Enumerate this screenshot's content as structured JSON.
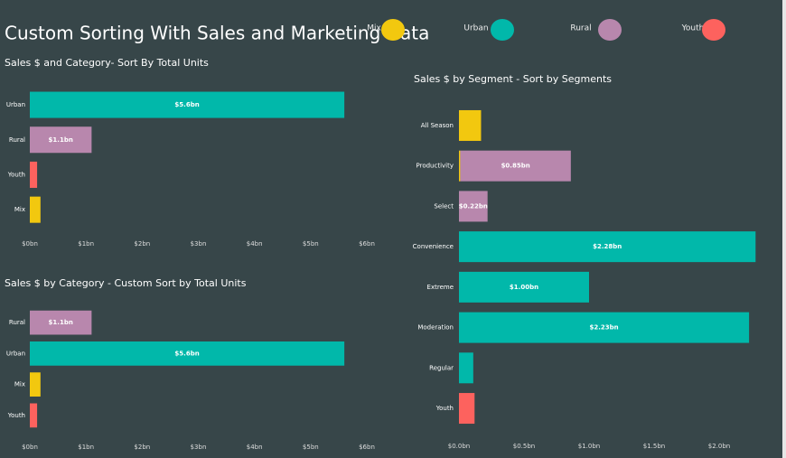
{
  "title": "Custom Sorting With Sales and Marketing Data",
  "legend": [
    {
      "name": "Mix",
      "color": "#F2C80F"
    },
    {
      "name": "Urban",
      "color": "#01B8AA"
    },
    {
      "name": "Rural",
      "color": "#B887AD"
    },
    {
      "name": "Youth",
      "color": "#FD625E"
    }
  ],
  "chart_data": [
    {
      "type": "bar",
      "orientation": "horizontal",
      "title": "Sales $ and Category- Sort By Total Units",
      "categories": [
        "Urban",
        "Rural",
        "Youth",
        "Mix"
      ],
      "values": [
        5.6,
        1.1,
        0.13,
        0.19
      ],
      "value_labels": [
        "$5.6bn",
        "$1.1bn",
        null,
        null
      ],
      "colors": [
        "#01B8AA",
        "#B887AD",
        "#FD625E",
        "#F2C80F"
      ],
      "xlim": [
        0,
        6
      ],
      "xticks": [
        {
          "value": 0,
          "label": "$0bn"
        },
        {
          "value": 1,
          "label": "$1bn"
        },
        {
          "value": 2,
          "label": "$2bn"
        },
        {
          "value": 3,
          "label": "$3bn"
        },
        {
          "value": 4,
          "label": "$4bn"
        },
        {
          "value": 5,
          "label": "$5bn"
        },
        {
          "value": 6,
          "label": "$6bn"
        }
      ]
    },
    {
      "type": "bar",
      "orientation": "horizontal",
      "title": "Sales $ by Category - Custom Sort by Total Units",
      "categories": [
        "Rural",
        "Urban",
        "Mix",
        "Youth"
      ],
      "values": [
        1.1,
        5.6,
        0.19,
        0.13
      ],
      "value_labels": [
        "$1.1bn",
        "$5.6bn",
        null,
        null
      ],
      "colors": [
        "#B887AD",
        "#01B8AA",
        "#F2C80F",
        "#FD625E"
      ],
      "xlim": [
        0,
        6
      ],
      "xticks": [
        {
          "value": 0,
          "label": "$0bn"
        },
        {
          "value": 1,
          "label": "$1bn"
        },
        {
          "value": 2,
          "label": "$2bn"
        },
        {
          "value": 3,
          "label": "$3bn"
        },
        {
          "value": 4,
          "label": "$4bn"
        },
        {
          "value": 5,
          "label": "$5bn"
        },
        {
          "value": 6,
          "label": "$6bn"
        }
      ]
    },
    {
      "type": "stacked-bar",
      "orientation": "horizontal",
      "title": "Sales $ by Segment - Sort by Segments",
      "categories": [
        "All Season",
        "Productivity",
        "Select",
        "Convenience",
        "Extreme",
        "Moderation",
        "Regular",
        "Youth"
      ],
      "series": [
        {
          "name": "Mix",
          "color": "#F2C80F",
          "values": [
            0.17,
            0.01,
            null,
            null,
            null,
            null,
            null,
            null
          ],
          "value_labels": [
            null,
            null,
            null,
            null,
            null,
            null,
            null,
            null
          ]
        },
        {
          "name": "Rural",
          "color": "#B887AD",
          "values": [
            null,
            0.85,
            0.22,
            null,
            null,
            null,
            null,
            null
          ],
          "value_labels": [
            null,
            "$0.85bn",
            "$0.22bn",
            null,
            null,
            null,
            null,
            null
          ]
        },
        {
          "name": "Urban",
          "color": "#01B8AA",
          "values": [
            null,
            null,
            null,
            2.28,
            1.0,
            2.23,
            0.11,
            null
          ],
          "value_labels": [
            null,
            null,
            null,
            "$2.28bn",
            "$1.00bn",
            "$2.23bn",
            null,
            null
          ]
        },
        {
          "name": "Youth",
          "color": "#FD625E",
          "values": [
            null,
            null,
            null,
            null,
            null,
            null,
            null,
            0.12
          ],
          "value_labels": [
            null,
            null,
            null,
            null,
            null,
            null,
            null,
            null
          ]
        }
      ],
      "xlim": [
        0,
        2.3
      ],
      "xticks": [
        {
          "value": 0,
          "label": "$0.0bn"
        },
        {
          "value": 0.5,
          "label": "$0.5bn"
        },
        {
          "value": 1,
          "label": "$1.0bn"
        },
        {
          "value": 1.5,
          "label": "$1.5bn"
        },
        {
          "value": 2,
          "label": "$2.0bn"
        }
      ]
    }
  ]
}
